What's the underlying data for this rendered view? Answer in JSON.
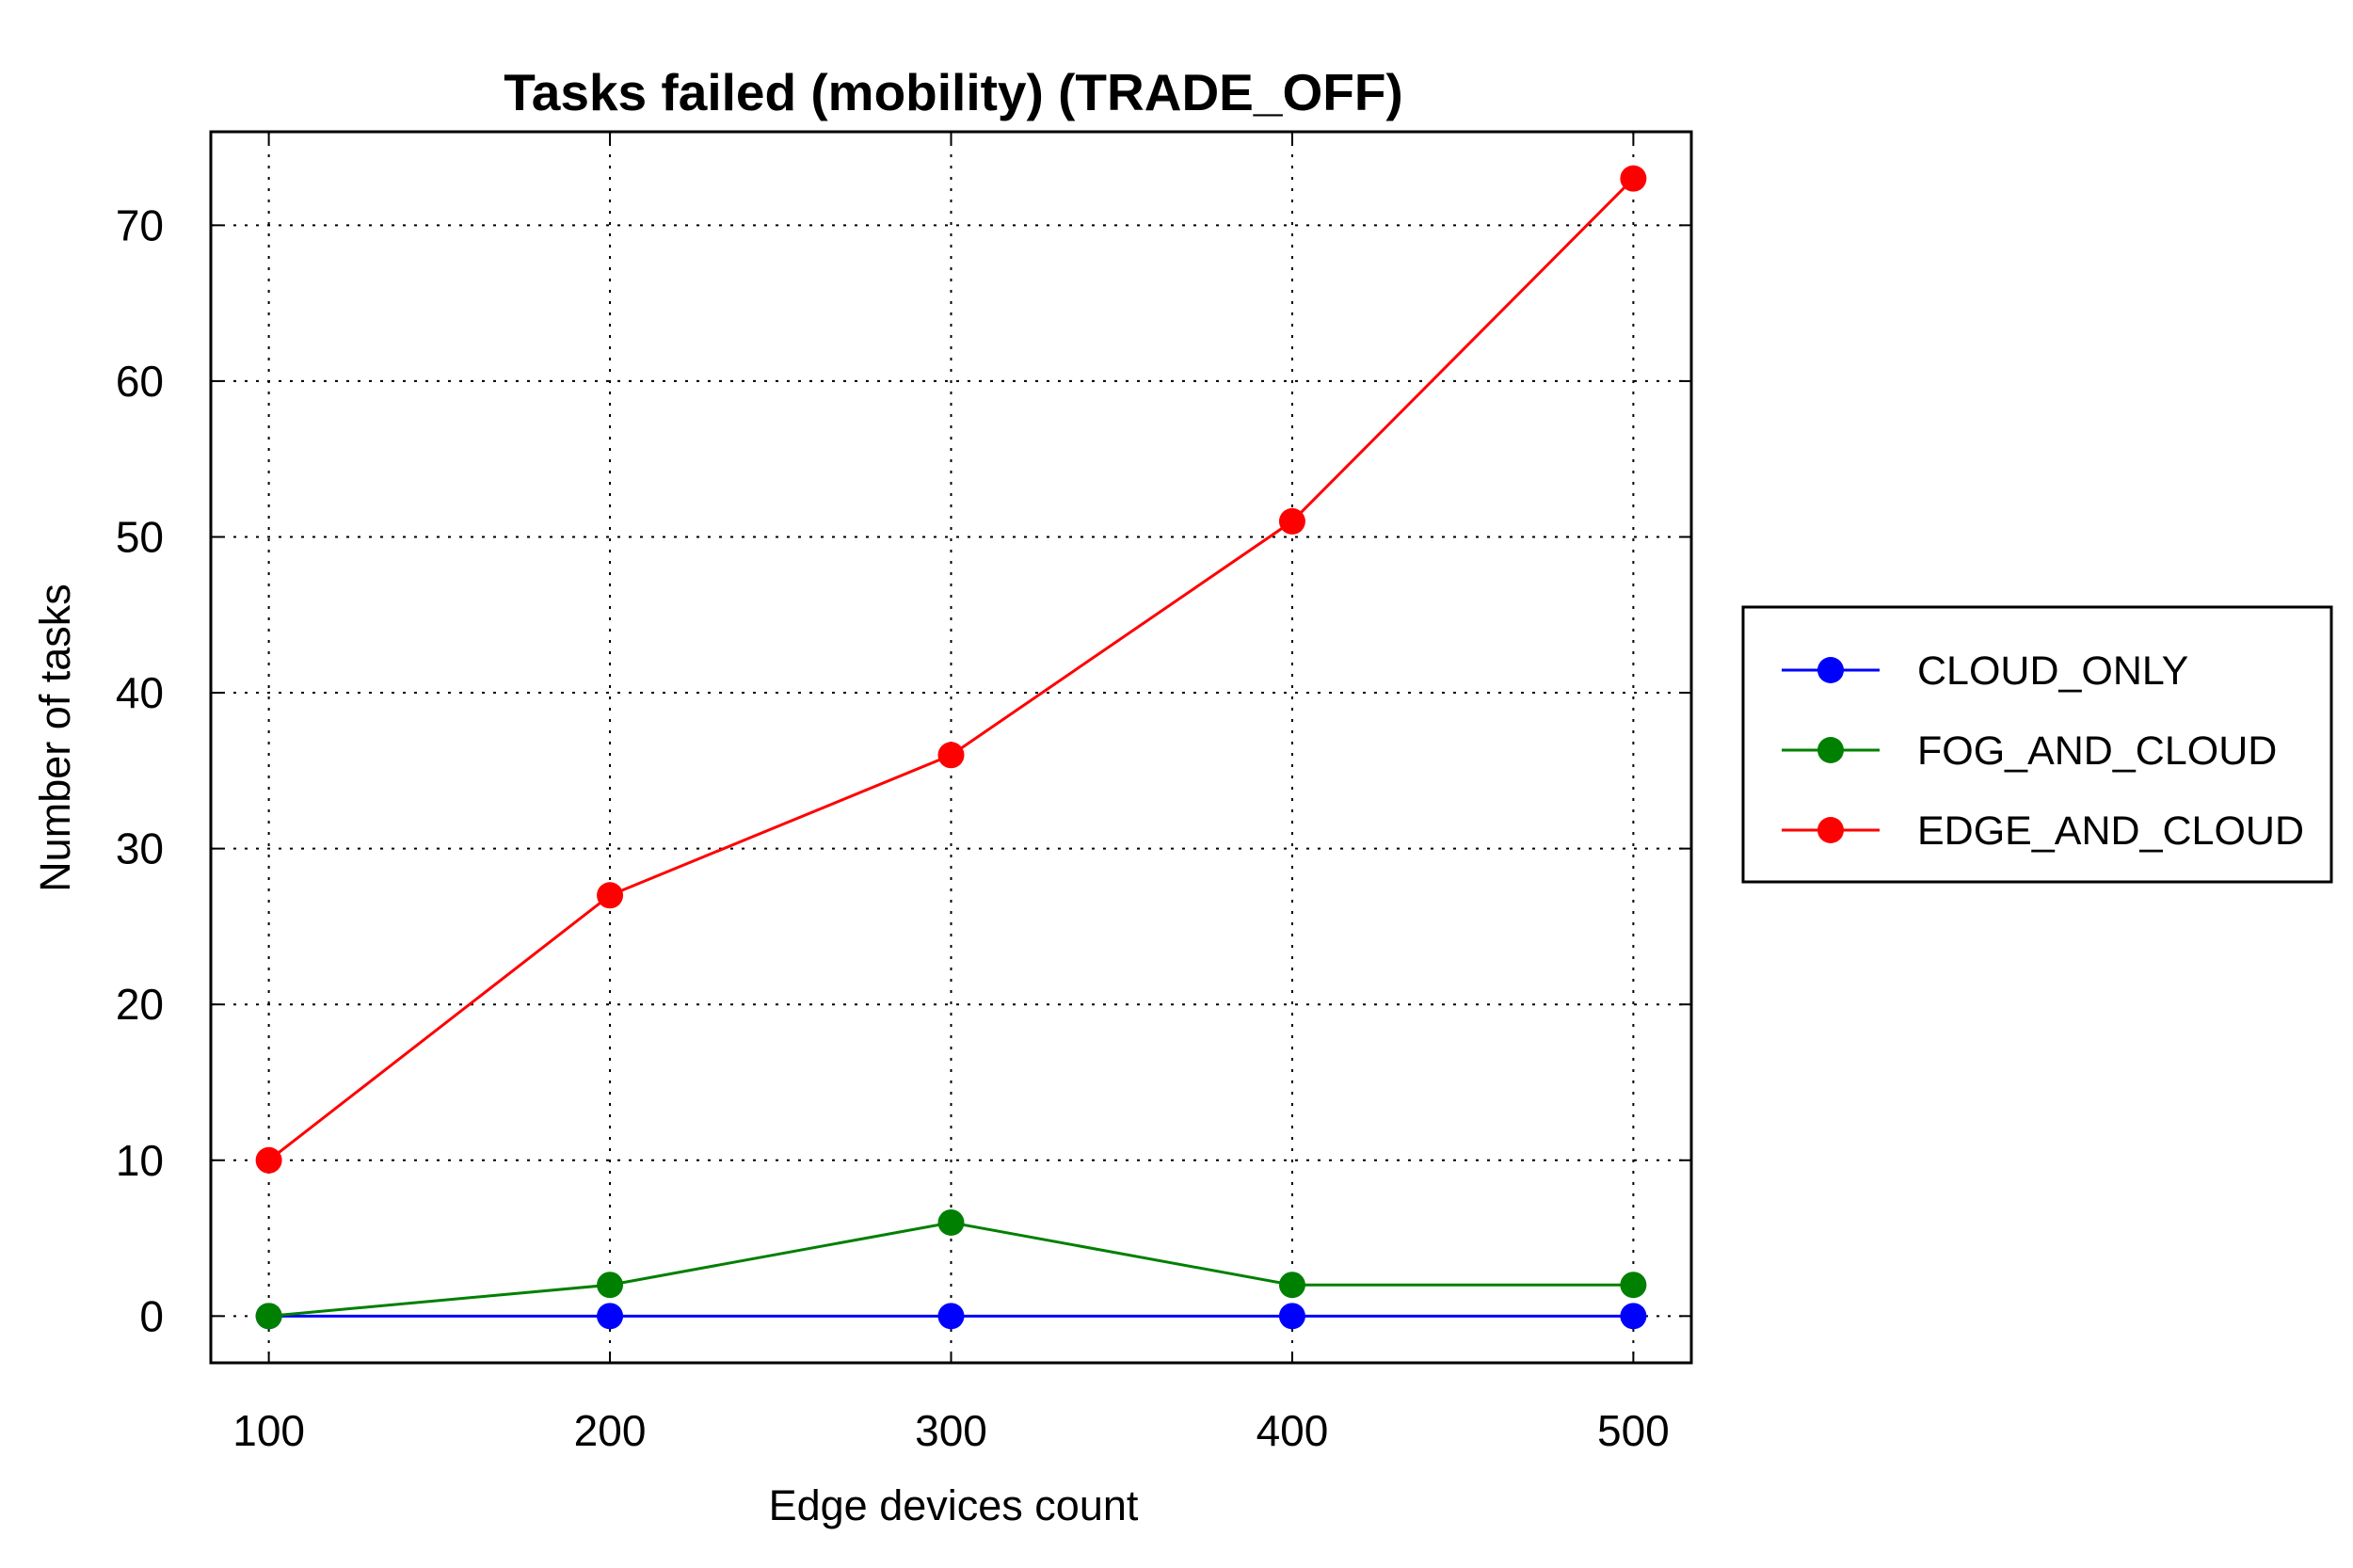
{
  "chart_data": {
    "type": "line",
    "title": "Tasks failed (mobility) (TRADE_OFF)",
    "xlabel": "Edge devices count",
    "ylabel": "Number of tasks",
    "x": [
      100,
      200,
      300,
      400,
      500
    ],
    "xticks": [
      "100",
      "200",
      "300",
      "400",
      "500"
    ],
    "yticks": [
      "0",
      "10",
      "20",
      "30",
      "40",
      "50",
      "60",
      "70"
    ],
    "xlim": [
      83,
      517
    ],
    "ylim": [
      -3,
      76
    ],
    "grid": true,
    "legend": "right",
    "series": [
      {
        "name": "CLOUD_ONLY",
        "color": "#0000ff",
        "values": [
          0,
          0,
          0,
          0,
          0
        ]
      },
      {
        "name": "FOG_AND_CLOUD",
        "color": "#008000",
        "values": [
          0,
          2,
          6,
          2,
          2
        ]
      },
      {
        "name": "EDGE_AND_CLOUD",
        "color": "#ff0000",
        "values": [
          10,
          27,
          36,
          51,
          73
        ]
      }
    ]
  }
}
